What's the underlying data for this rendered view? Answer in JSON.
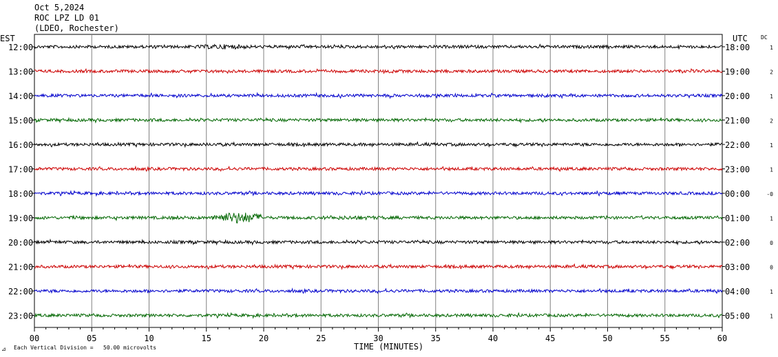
{
  "header": {
    "date": "Oct 5,2024",
    "station": "ROC LPZ LD 01",
    "network": "(LDEO, Rochester)"
  },
  "labels": {
    "left_tz": "EST",
    "right_tz": "UTC",
    "dc": "DC",
    "footer_scale": "Each Vertical Division =   50.00 microvolts"
  },
  "chart_data": {
    "type": "line",
    "title": "",
    "xlabel": "TIME (MINUTES)",
    "ylabel": "",
    "xlim": [
      0,
      60
    ],
    "x_ticks": [
      "00",
      "05",
      "10",
      "15",
      "20",
      "25",
      "30",
      "35",
      "40",
      "45",
      "50",
      "55",
      "60"
    ],
    "grid": true,
    "trace_colors": [
      "#000000",
      "#cc0000",
      "#0000cc",
      "#006600"
    ],
    "traces": [
      {
        "est": "12:00",
        "utc": "18:00",
        "dc": "1",
        "color": "#000000",
        "events": [
          {
            "start": 13,
            "end": 20,
            "amp": 1.8
          }
        ]
      },
      {
        "est": "13:00",
        "utc": "19:00",
        "dc": "2",
        "color": "#cc0000",
        "events": []
      },
      {
        "est": "14:00",
        "utc": "20:00",
        "dc": "1",
        "color": "#0000cc",
        "events": []
      },
      {
        "est": "15:00",
        "utc": "21:00",
        "dc": "2",
        "color": "#006600",
        "events": []
      },
      {
        "est": "16:00",
        "utc": "22:00",
        "dc": "1",
        "color": "#000000",
        "events": [
          {
            "start": 16,
            "end": 17,
            "amp": 1.3
          },
          {
            "start": 45,
            "end": 45.5,
            "amp": 1.3
          }
        ]
      },
      {
        "est": "17:00",
        "utc": "23:00",
        "dc": "1",
        "color": "#cc0000",
        "events": []
      },
      {
        "est": "18:00",
        "utc": "00:00",
        "dc": "-0",
        "color": "#0000cc",
        "events": []
      },
      {
        "est": "19:00",
        "utc": "01:00",
        "dc": "1",
        "color": "#006600",
        "events": [
          {
            "start": 10,
            "end": 15,
            "amp": 1.3
          },
          {
            "start": 15.5,
            "end": 20,
            "amp": 4.2
          },
          {
            "start": 23,
            "end": 33,
            "amp": 1.5
          }
        ]
      },
      {
        "est": "20:00",
        "utc": "02:00",
        "dc": "0",
        "color": "#000000",
        "events": []
      },
      {
        "est": "21:00",
        "utc": "03:00",
        "dc": "0",
        "color": "#cc0000",
        "events": []
      },
      {
        "est": "22:00",
        "utc": "04:00",
        "dc": "1",
        "color": "#0000cc",
        "events": []
      },
      {
        "est": "23:00",
        "utc": "05:00",
        "dc": "1",
        "color": "#006600",
        "events": []
      }
    ]
  }
}
